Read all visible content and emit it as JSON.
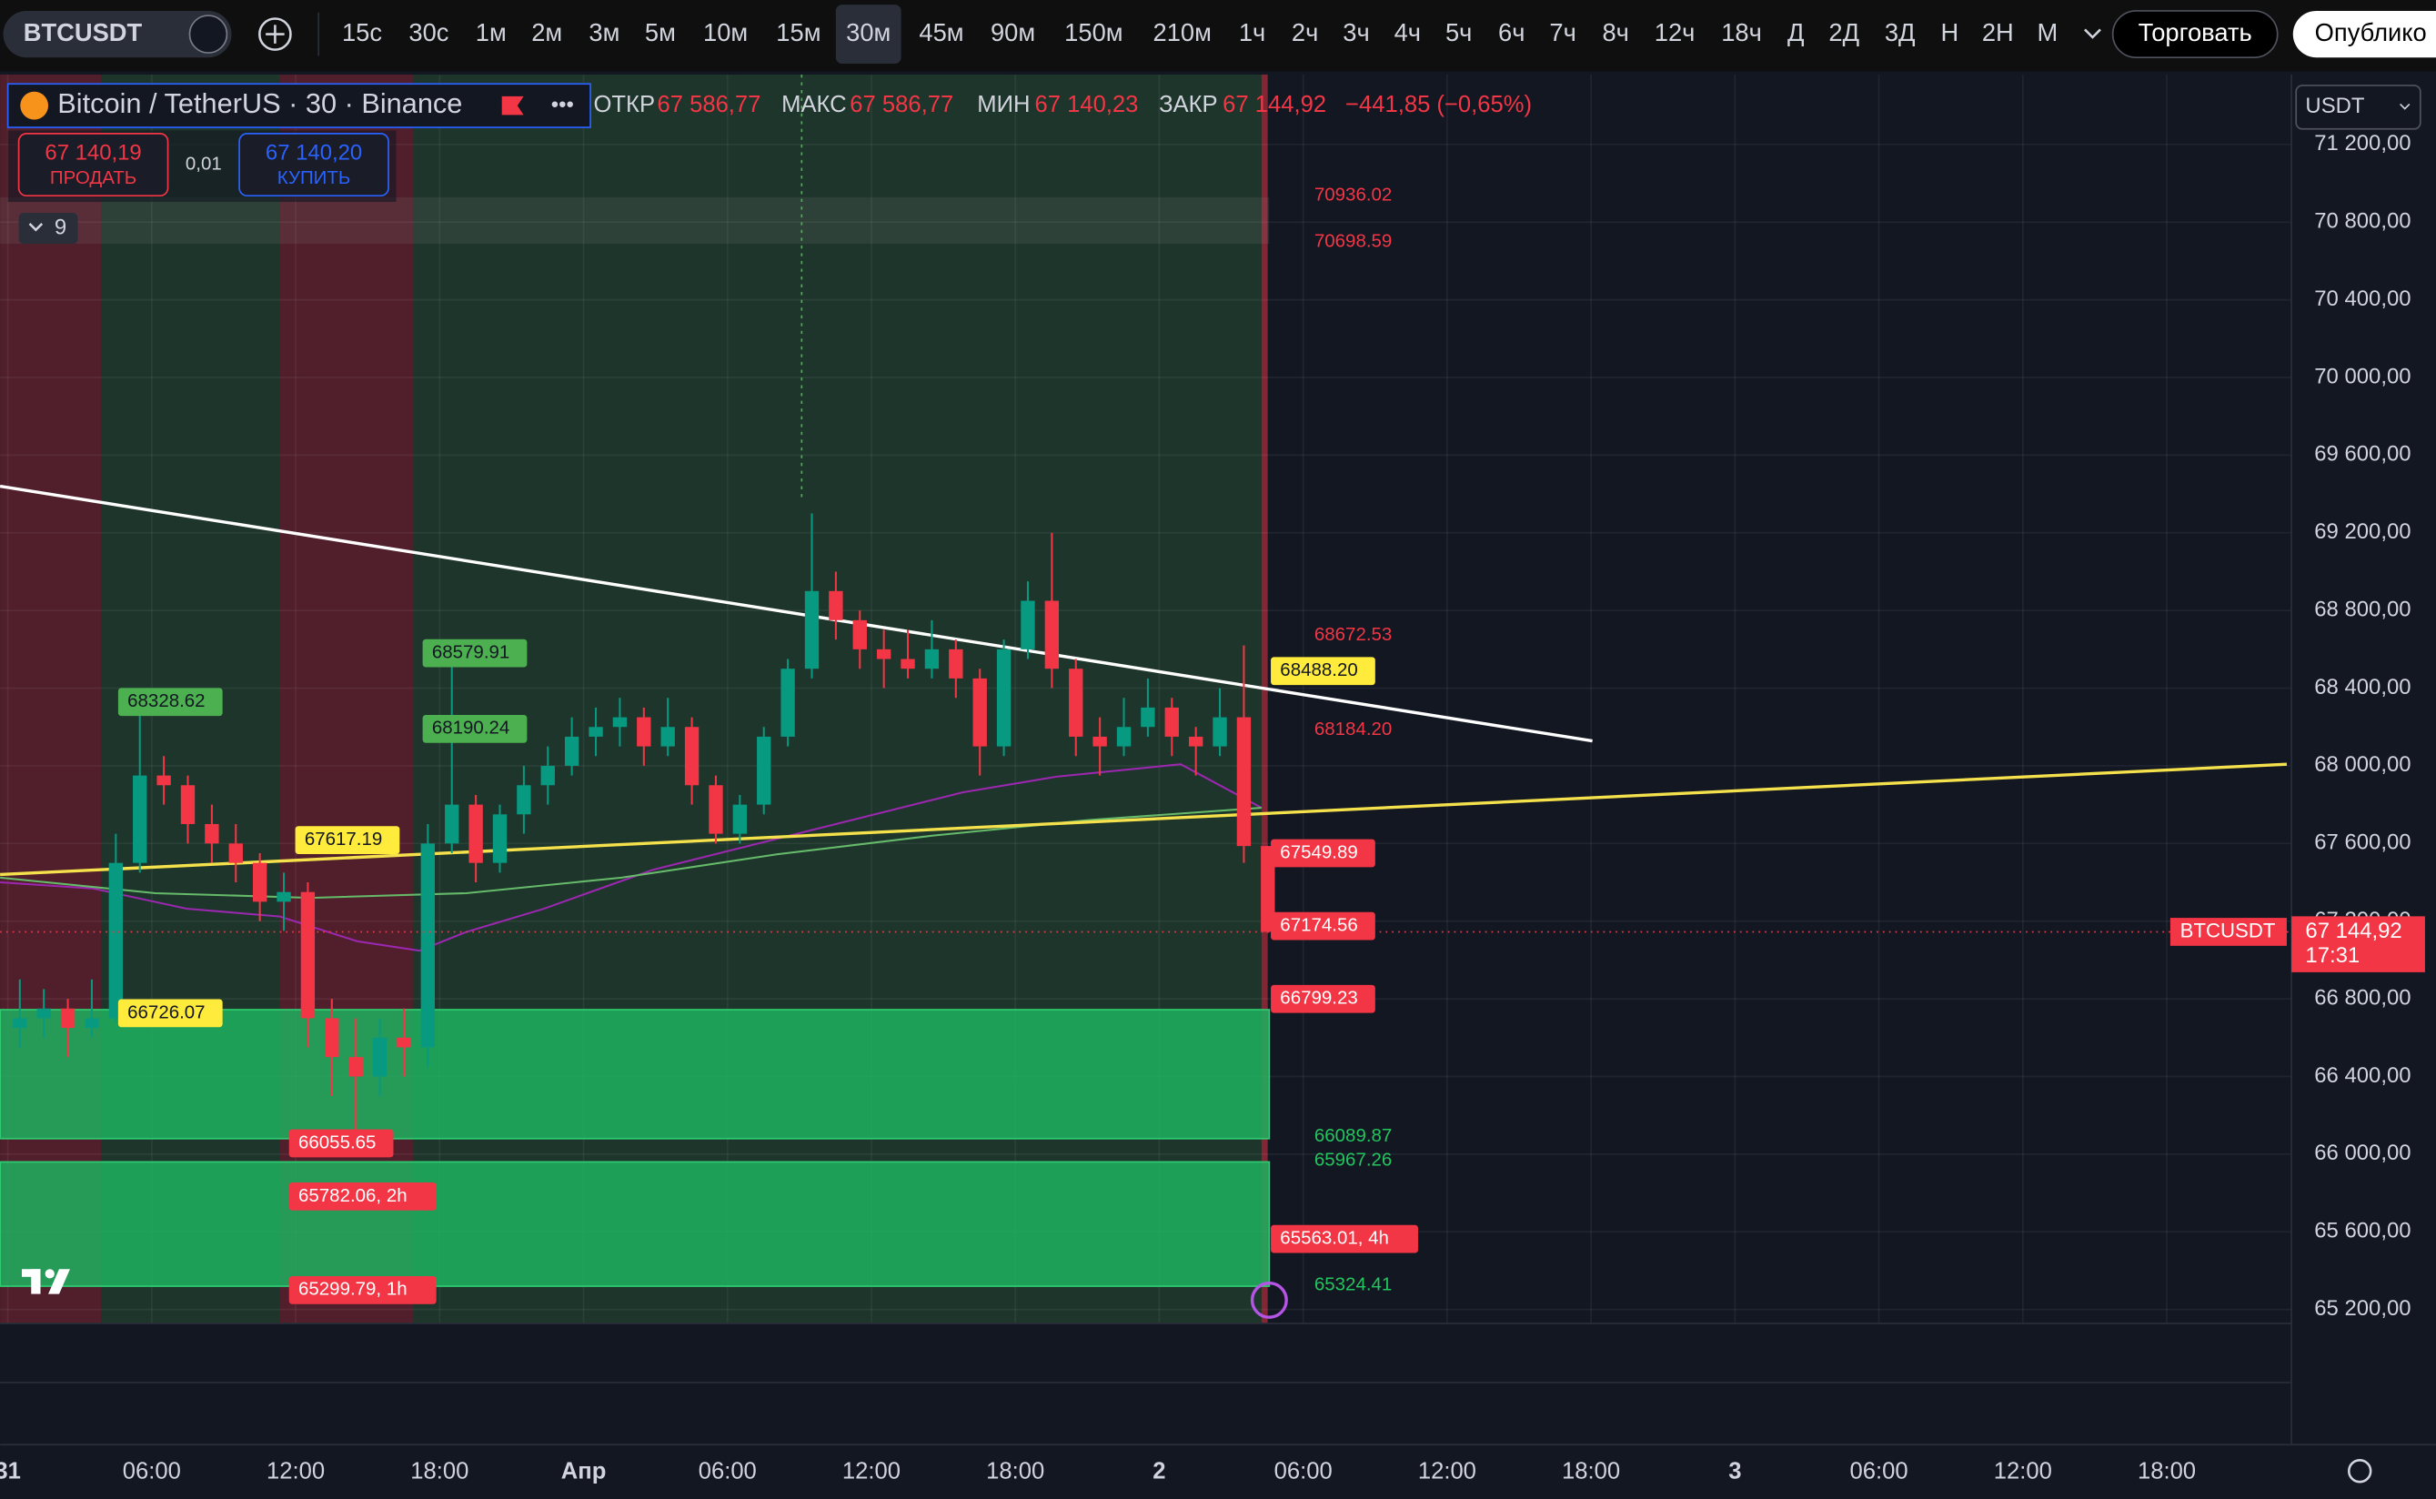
{
  "toolbar": {
    "symbol": "BTCUSDT",
    "intervals": [
      "15с",
      "30с",
      "1м",
      "2м",
      "3м",
      "5м",
      "10м",
      "15м",
      "30м",
      "45м",
      "90м",
      "150м",
      "210м",
      "1ч",
      "2ч",
      "3ч",
      "4ч",
      "5ч",
      "6ч",
      "7ч",
      "8ч",
      "12ч",
      "18ч",
      "Д",
      "2Д",
      "3Д",
      "Н",
      "2Н",
      "М"
    ],
    "trade_button": "Торговать",
    "publish_button": "Опублико"
  },
  "legend": {
    "title": "Bitcoin / TetherUS · 30 · Binance",
    "open_label": "ОТКР",
    "open": "67 586,77",
    "high_label": "МАКС",
    "high": "67 586,77",
    "low_label": "МИН",
    "low": "67 140,23",
    "close_label": "ЗАКР",
    "close": "67 144,92",
    "change": "−441,85 (−0,65%)"
  },
  "order": {
    "sell_price": "67 140,19",
    "sell_label": "ПРОДАТЬ",
    "spread": "0,01",
    "buy_price": "67 140,20",
    "buy_label": "КУПИТЬ"
  },
  "indicators_count": "9",
  "currency": "USDT",
  "chart_data": {
    "type": "candlestick",
    "up_color": "#089981",
    "down_color": "#f23645",
    "candles": [
      [
        66650,
        66900,
        66550,
        66700
      ],
      [
        66700,
        66850,
        66600,
        66750
      ],
      [
        66750,
        66800,
        66500,
        66650
      ],
      [
        66650,
        66900,
        66600,
        66700
      ],
      [
        66700,
        67650,
        66680,
        67500
      ],
      [
        67500,
        68330,
        67450,
        67950
      ],
      [
        67950,
        68050,
        67800,
        67900
      ],
      [
        67900,
        67950,
        67600,
        67700
      ],
      [
        67700,
        67800,
        67500,
        67600
      ],
      [
        67600,
        67700,
        67400,
        67500
      ],
      [
        67500,
        67550,
        67200,
        67300
      ],
      [
        67300,
        67450,
        67150,
        67350
      ],
      [
        67350,
        67400,
        66550,
        66700
      ],
      [
        66700,
        66800,
        66300,
        66500
      ],
      [
        66500,
        66700,
        66055,
        66400
      ],
      [
        66400,
        66700,
        66300,
        66600
      ],
      [
        66600,
        66750,
        66400,
        66550
      ],
      [
        66550,
        67700,
        66450,
        67600
      ],
      [
        67600,
        68580,
        67550,
        67800
      ],
      [
        67800,
        67850,
        67400,
        67500
      ],
      [
        67500,
        67800,
        67450,
        67750
      ],
      [
        67750,
        68000,
        67650,
        67900
      ],
      [
        67900,
        68100,
        67800,
        68000
      ],
      [
        68000,
        68250,
        67950,
        68150
      ],
      [
        68150,
        68300,
        68050,
        68200
      ],
      [
        68200,
        68350,
        68100,
        68250
      ],
      [
        68250,
        68300,
        68000,
        68100
      ],
      [
        68100,
        68350,
        68050,
        68200
      ],
      [
        68200,
        68250,
        67800,
        67900
      ],
      [
        67900,
        67950,
        67600,
        67650
      ],
      [
        67650,
        67850,
        67600,
        67800
      ],
      [
        67800,
        68200,
        67750,
        68150
      ],
      [
        68150,
        68550,
        68100,
        68500
      ],
      [
        68500,
        69300,
        68450,
        68900
      ],
      [
        68900,
        69000,
        68650,
        68750
      ],
      [
        68750,
        68800,
        68500,
        68600
      ],
      [
        68600,
        68700,
        68400,
        68550
      ],
      [
        68550,
        68700,
        68450,
        68500
      ],
      [
        68500,
        68750,
        68450,
        68600
      ],
      [
        68600,
        68650,
        68350,
        68450
      ],
      [
        68450,
        68500,
        67950,
        68100
      ],
      [
        68100,
        68650,
        68050,
        68600
      ],
      [
        68600,
        68950,
        68550,
        68850
      ],
      [
        68850,
        69200,
        68400,
        68500
      ],
      [
        68500,
        68550,
        68050,
        68150
      ],
      [
        68150,
        68250,
        67950,
        68100
      ],
      [
        68100,
        68350,
        68050,
        68200
      ],
      [
        68200,
        68450,
        68150,
        68300
      ],
      [
        68300,
        68350,
        68050,
        68150
      ],
      [
        68150,
        68200,
        67950,
        68100
      ],
      [
        68100,
        68400,
        68050,
        68250
      ],
      [
        68250,
        68620,
        67500,
        67586.77
      ],
      [
        67586.77,
        67586.77,
        67140.23,
        67144.92
      ]
    ],
    "ylim": [
      64824,
      71560
    ],
    "yticks": [
      {
        "value": 71200,
        "label": "71 200,00"
      },
      {
        "value": 70800,
        "label": "70 800,00"
      },
      {
        "value": 70400,
        "label": "70 400,00"
      },
      {
        "value": 70000,
        "label": "70 000,00"
      },
      {
        "value": 69600,
        "label": "69 600,00"
      },
      {
        "value": 69200,
        "label": "69 200,00"
      },
      {
        "value": 68800,
        "label": "68 800,00"
      },
      {
        "value": 68400,
        "label": "68 400,00"
      },
      {
        "value": 68000,
        "label": "68 000,00"
      },
      {
        "value": 67600,
        "label": "67 600,00"
      },
      {
        "value": 67200,
        "label": "67 200,00"
      },
      {
        "value": 66800,
        "label": "66 800,00"
      },
      {
        "value": 66400,
        "label": "66 400,00"
      },
      {
        "value": 66000,
        "label": "66 000,00"
      },
      {
        "value": 65600,
        "label": "65 600,00"
      },
      {
        "value": 65200,
        "label": "65 200,00"
      }
    ],
    "xlabels": [
      "31",
      "06:00",
      "12:00",
      "18:00",
      "Апр",
      "06:00",
      "12:00",
      "18:00",
      "2",
      "06:00",
      "12:00",
      "18:00",
      "3",
      "06:00",
      "12:00",
      "18:00"
    ],
    "grid": true,
    "level_labels": [
      {
        "style": "text",
        "color": "#f23645",
        "values": [
          70936.02,
          70698.59,
          68672.53,
          {
            "value": 68184.2,
            "label": "68184.20"
          }
        ]
      },
      {
        "style": "text",
        "color": "#22c55e",
        "values": [
          66089.87,
          65967.26,
          65324.41
        ]
      },
      {
        "style": "box",
        "color": "#ffeb3b",
        "values": [
          {
            "value": 68488.2,
            "label": "68488.20"
          }
        ]
      },
      {
        "style": "box",
        "color": "#f23645",
        "values": [
          67549.89,
          67174.56,
          66799.23,
          {
            "value": 65563.01,
            "label": "65563.01, 4h"
          }
        ]
      },
      {
        "style": "box",
        "color": "#ffeb3b",
        "values": [
          67617.19
        ]
      },
      {
        "style": "box",
        "color": "#f23645",
        "values": [
          66055.65,
          {
            "value": 65782.06,
            "label": "65782.06, 2h"
          },
          {
            "value": 65299.79,
            "label": "65299.79, 1h"
          }
        ]
      },
      {
        "style": "box",
        "color": "#4caf50",
        "values": [
          68328.62
        ]
      },
      {
        "style": "box",
        "color": "#ffeb3b",
        "values": [
          66726.07
        ]
      },
      {
        "style": "box",
        "color": "#4caf50",
        "values": [
          68579.91,
          68190.24
        ]
      }
    ],
    "last_price": {
      "symbol": "BTCUSDT",
      "label": "67 144,92",
      "countdown": "17:31"
    }
  }
}
